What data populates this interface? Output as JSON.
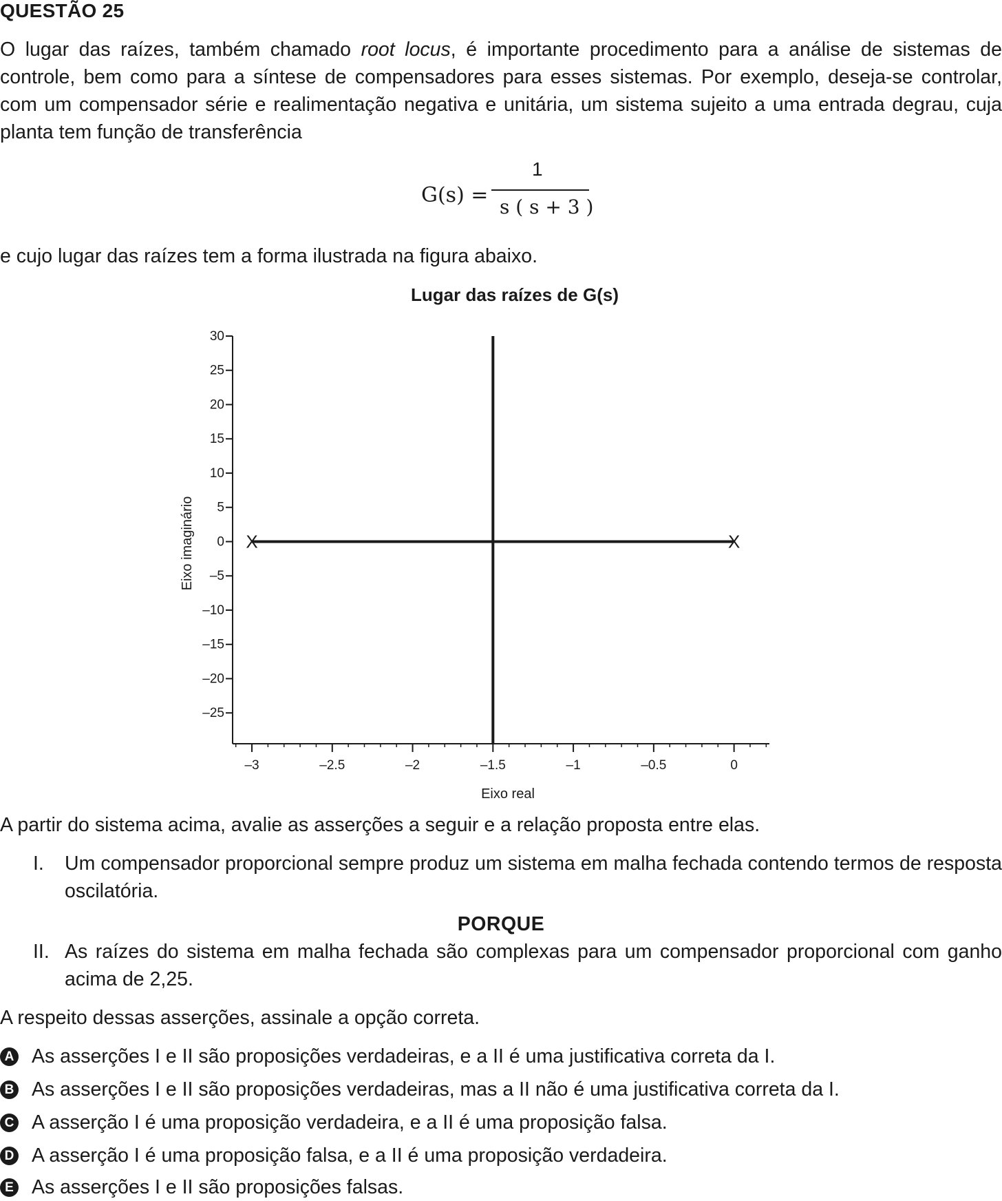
{
  "question": {
    "title": "QUESTÃO 25",
    "intro_before_italic": "O lugar das raízes, também chamado ",
    "intro_italic": "root locus",
    "intro_after_italic": ", é importante procedimento para a análise de sistemas de controle, bem como para a síntese de compensadores para esses sistemas. Por exemplo, deseja-se controlar, com um compensador série e realimentação negativa e unitária, um sistema sujeito a uma entrada degrau, cuja planta tem função de transferência",
    "formula": {
      "lhs": "G(s) =",
      "numerator": "1",
      "denominator": "s ( s + 3 )"
    },
    "after_formula": "e cujo lugar das raízes tem a forma ilustrada na figura abaixo.",
    "after_chart": "A partir do sistema acima, avalie as asserções a seguir e a relação proposta entre elas.",
    "assertions": [
      {
        "num": "I.",
        "text": "Um compensador proporcional sempre produz um sistema em malha fechada contendo termos de resposta oscilatória."
      },
      {
        "num": "II.",
        "text": "As raízes do sistema em malha fechada são complexas para um compensador proporcional com ganho acima de 2,25."
      }
    ],
    "connector": "PORQUE",
    "instruction": "A respeito dessas asserções, assinale a opção correta.",
    "options": [
      {
        "letter": "A",
        "text": "As asserções I e II são proposições verdadeiras, e a II é uma justificativa correta da I."
      },
      {
        "letter": "B",
        "text": "As asserções I e II são proposições verdadeiras, mas a II não é uma justificativa correta da I."
      },
      {
        "letter": "C",
        "text": "A asserção I é uma proposição verdadeira, e a II é uma proposição falsa."
      },
      {
        "letter": "D",
        "text": "A asserção I é uma proposição falsa, e a II é uma proposição verdadeira."
      },
      {
        "letter": "E",
        "text": "As asserções I e II são proposições falsas."
      }
    ]
  },
  "chart_data": {
    "type": "line",
    "title": "Lugar das raízes de G(s)",
    "xlabel": "Eixo real",
    "ylabel": "Eixo imaginário",
    "xlim": [
      -3.12,
      0.22
    ],
    "ylim": [
      -29.5,
      30
    ],
    "xticks": [
      -3,
      -2.5,
      -2,
      -1.5,
      -1,
      -0.5,
      0
    ],
    "xtick_labels": [
      "–3",
      "–2.5",
      "–2",
      "–1.5",
      "–1",
      "–0.5",
      "0"
    ],
    "yticks": [
      30,
      25,
      20,
      15,
      10,
      5,
      0,
      -5,
      -10,
      -15,
      -20,
      -25
    ],
    "ytick_labels": [
      "30",
      "25",
      "20",
      "15",
      "10",
      "5",
      "0",
      "–5",
      "–10",
      "–15",
      "–20",
      "–25"
    ],
    "grid": false,
    "poles": [
      {
        "x": -3,
        "y": 0,
        "label": "X"
      },
      {
        "x": 0,
        "y": 0,
        "label": "X"
      }
    ],
    "branches": [
      {
        "name": "",
        "points": [
          [
            -3,
            0
          ],
          [
            0,
            0
          ]
        ]
      },
      {
        "name": "",
        "points": [
          [
            -1.5,
            -29.5
          ],
          [
            -1.5,
            30
          ]
        ]
      }
    ]
  }
}
